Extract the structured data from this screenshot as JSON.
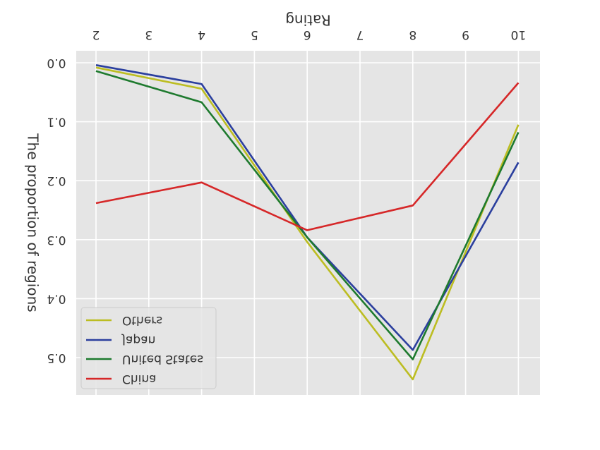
{
  "chart_data": {
    "type": "line",
    "xlabel": "Rating",
    "ylabel": "The proportion of regions",
    "x": [
      2,
      4,
      6,
      8,
      10
    ],
    "xticks": [
      "2",
      "3",
      "4",
      "5",
      "6",
      "7",
      "8",
      "9",
      "10"
    ],
    "yticks": [
      "0.0",
      "0.1",
      "0.2",
      "0.3",
      "0.4",
      "0.5"
    ],
    "xlim": [
      1.65,
      10.4
    ],
    "ylim": [
      0.0,
      0.56
    ],
    "x_axis_position": "top",
    "y_axis_inverted": true,
    "grid": true,
    "legend_position": "bottom-left",
    "series": [
      {
        "name": "Others",
        "color": "#bcbd22",
        "values": [
          0.008,
          0.044,
          0.304,
          0.537,
          0.105
        ]
      },
      {
        "name": "Japan",
        "color": "#2b3f9e",
        "values": [
          0.004,
          0.036,
          0.296,
          0.487,
          0.169
        ]
      },
      {
        "name": "United States",
        "color": "#1e7a2e",
        "values": [
          0.014,
          0.067,
          0.296,
          0.503,
          0.118
        ]
      },
      {
        "name": "China",
        "color": "#d62728",
        "values": [
          0.238,
          0.203,
          0.284,
          0.242,
          0.034
        ]
      }
    ]
  }
}
